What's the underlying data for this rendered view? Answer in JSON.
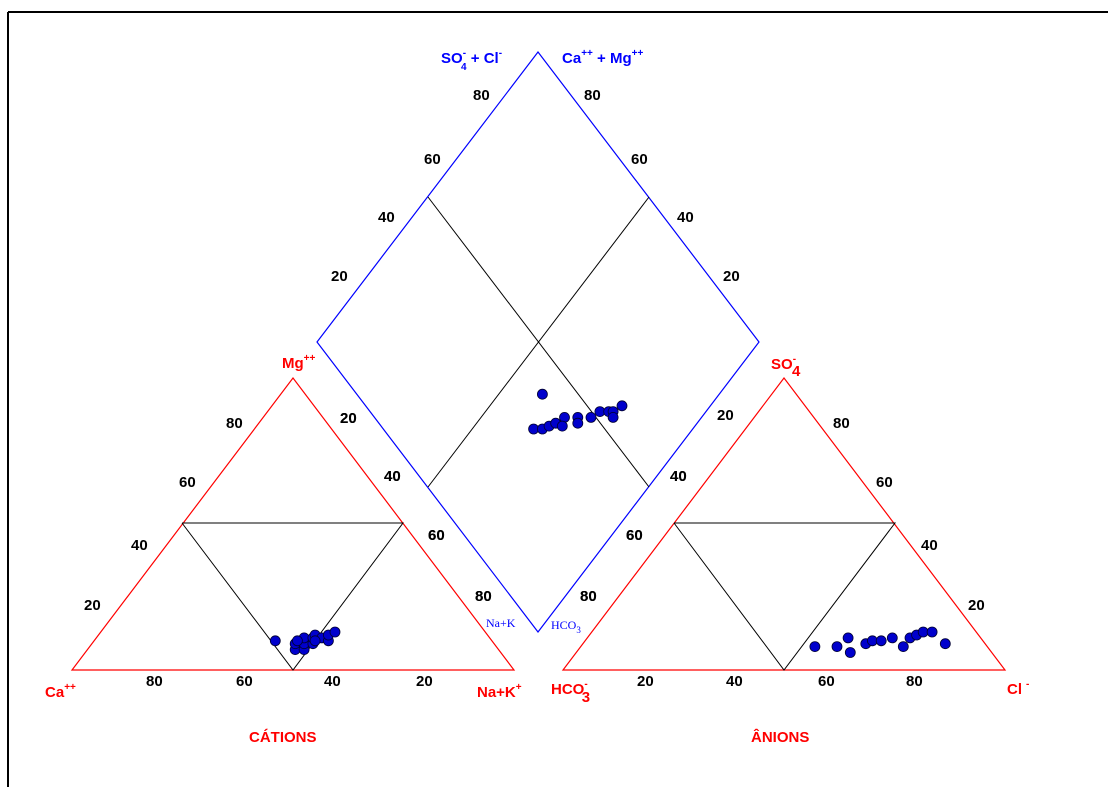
{
  "colors": {
    "cation_tri": "#ff0000",
    "anion_tri": "#ff0000",
    "diamond": "#0000ff",
    "inner": "#000000",
    "points": "#0000cc"
  },
  "chart_data": [
    {
      "type": "scatter",
      "name_label": "CÁTIONS",
      "vertex_labels": {
        "left": {
          "base": "Ca",
          "sup": "++"
        },
        "right": {
          "base": "Na+K",
          "sup": "+"
        },
        "top": {
          "base": "Mg",
          "sup": "++"
        }
      },
      "tick_labels": {
        "bottom": [
          "80",
          "60",
          "40",
          "20"
        ],
        "left_side": [
          "20",
          "40",
          "60",
          "80"
        ],
        "right_side": [
          "20",
          "40",
          "60",
          "80"
        ]
      },
      "points": [
        {
          "ca": 49,
          "mg": 10
        },
        {
          "ca": 46,
          "mg": 7
        },
        {
          "ca": 45,
          "mg": 9
        },
        {
          "ca": 44,
          "mg": 7
        },
        {
          "ca": 43,
          "mg": 9
        },
        {
          "ca": 42,
          "mg": 11
        },
        {
          "ca": 41,
          "mg": 9
        },
        {
          "ca": 40,
          "mg": 11
        },
        {
          "ca": 39,
          "mg": 12
        },
        {
          "ca": 38,
          "mg": 11
        },
        {
          "ca": 37,
          "mg": 10
        },
        {
          "ca": 36,
          "mg": 12
        },
        {
          "ca": 34,
          "mg": 13
        },
        {
          "ca": 44,
          "mg": 10
        },
        {
          "ca": 40,
          "mg": 10
        }
      ]
    },
    {
      "type": "scatter",
      "name_label": "ÂNIONS",
      "vertex_labels": {
        "left": {
          "base": "HCO",
          "sub": "3",
          "sup": "-"
        },
        "right": {
          "base": "Cl",
          "sup": "-"
        },
        "top": {
          "base": "SO",
          "sub": "4",
          "sup": "-"
        }
      },
      "tick_labels": {
        "bottom": [
          "20",
          "40",
          "60",
          "80"
        ],
        "left_side": [
          "80",
          "60",
          "40"
        ],
        "right_side": [
          "80",
          "60",
          "40",
          "20"
        ]
      },
      "points": [
        {
          "cl": 53,
          "so4": 8
        },
        {
          "cl": 58,
          "so4": 8
        },
        {
          "cl": 59,
          "so4": 11
        },
        {
          "cl": 62,
          "so4": 6
        },
        {
          "cl": 64,
          "so4": 9
        },
        {
          "cl": 65,
          "so4": 10
        },
        {
          "cl": 67,
          "so4": 10
        },
        {
          "cl": 69,
          "so4": 11
        },
        {
          "cl": 73,
          "so4": 8
        },
        {
          "cl": 73,
          "so4": 11
        },
        {
          "cl": 74,
          "so4": 12
        },
        {
          "cl": 75,
          "so4": 13
        },
        {
          "cl": 77,
          "so4": 13
        },
        {
          "cl": 82,
          "so4": 9
        }
      ]
    },
    {
      "type": "scatter",
      "name_label": "",
      "top_labels": {
        "left": {
          "text": "SO",
          "sub": "4",
          "sup": "-",
          "rest": " + Cl",
          "rest_sup": "-"
        },
        "right": {
          "text": "Ca",
          "sup": "++",
          "rest": " +  Mg",
          "rest_sup": "++"
        }
      },
      "bottom_labels": {
        "left": "Na+K",
        "right": "HCO",
        "right_sub": "3"
      },
      "tick_labels": {
        "upper_left": [
          "80",
          "60",
          "40",
          "20"
        ],
        "upper_right": [
          "80",
          "60",
          "40",
          "20"
        ],
        "lower_left": [
          "20",
          "40",
          "60",
          "80"
        ],
        "lower_right": [
          "20",
          "40",
          "60",
          "80"
        ]
      },
      "points": [
        {
          "so4cl": 64,
          "camg": 34
        },
        {
          "so4cl": 66,
          "camg": 36
        },
        {
          "so4cl": 67,
          "camg": 38
        },
        {
          "so4cl": 68,
          "camg": 40
        },
        {
          "so4cl": 69,
          "camg": 43
        },
        {
          "so4cl": 70,
          "camg": 41
        },
        {
          "so4cl": 72,
          "camg": 46
        },
        {
          "so4cl": 73,
          "camg": 45
        },
        {
          "so4cl": 75,
          "camg": 49
        },
        {
          "so4cl": 76,
          "camg": 52
        },
        {
          "so4cl": 78,
          "camg": 54
        },
        {
          "so4cl": 79,
          "camg": 55
        },
        {
          "so4cl": 80,
          "camg": 54
        },
        {
          "so4cl": 80,
          "camg": 58
        },
        {
          "so4cl": 60,
          "camg": 42
        }
      ]
    }
  ]
}
